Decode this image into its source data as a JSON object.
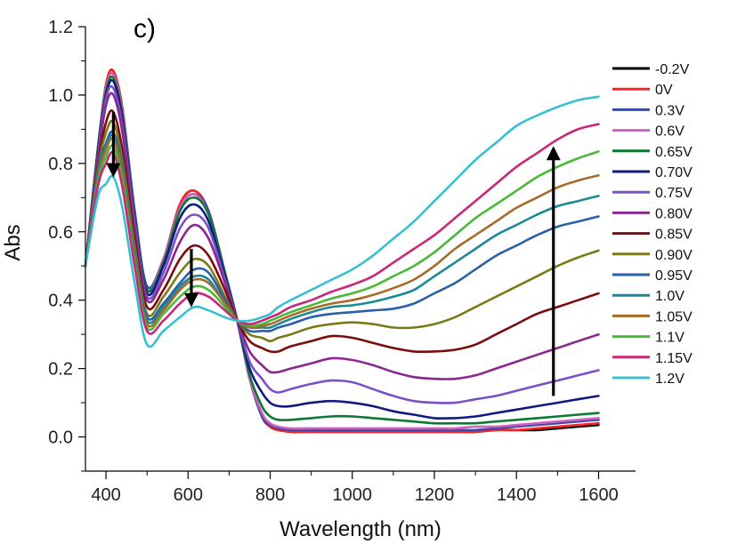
{
  "chart_data": {
    "type": "line",
    "panel_label": "c)",
    "xlabel": "Wavelength (nm)",
    "ylabel": "Abs",
    "xlim": [
      350,
      1690
    ],
    "ylim": [
      -0.1,
      1.2
    ],
    "x_ticks": [
      400,
      600,
      800,
      1000,
      1200,
      1400,
      1600
    ],
    "x_tick_labels": [
      "400",
      "600",
      "800",
      "1000",
      "1200",
      "1400",
      "1600"
    ],
    "y_ticks": [
      0.0,
      0.2,
      0.4,
      0.6,
      0.8,
      1.0,
      1.2
    ],
    "y_tick_labels": [
      "0.0",
      "0.2",
      "0.4",
      "0.6",
      "0.8",
      "1.0",
      "1.2"
    ],
    "legend_position": "right",
    "isosbestic_point": [
      720,
      0.34
    ],
    "x": [
      350,
      380,
      400,
      418,
      440,
      470,
      500,
      540,
      580,
      615,
      650,
      690,
      720,
      750,
      780,
      800,
      820,
      850,
      900,
      950,
      1000,
      1050,
      1100,
      1150,
      1200,
      1250,
      1300,
      1350,
      1400,
      1450,
      1500,
      1550,
      1600
    ],
    "series": [
      {
        "name": "-0.2V",
        "color": "#000000",
        "values": [
          0.5,
          0.84,
          1.03,
          1.07,
          0.96,
          0.66,
          0.44,
          0.52,
          0.68,
          0.72,
          0.66,
          0.48,
          0.34,
          0.17,
          0.06,
          0.03,
          0.02,
          0.015,
          0.015,
          0.015,
          0.015,
          0.015,
          0.015,
          0.015,
          0.015,
          0.015,
          0.015,
          0.02,
          0.02,
          0.02,
          0.025,
          0.03,
          0.035
        ]
      },
      {
        "name": "0V",
        "color": "#ff2020",
        "values": [
          0.5,
          0.84,
          1.03,
          1.07,
          0.96,
          0.66,
          0.44,
          0.52,
          0.68,
          0.72,
          0.66,
          0.48,
          0.34,
          0.17,
          0.06,
          0.03,
          0.02,
          0.015,
          0.015,
          0.015,
          0.015,
          0.015,
          0.015,
          0.015,
          0.015,
          0.015,
          0.015,
          0.02,
          0.02,
          0.025,
          0.03,
          0.035,
          0.04
        ]
      },
      {
        "name": "0.3V",
        "color": "#3a4aa8",
        "values": [
          0.5,
          0.84,
          1.02,
          1.06,
          0.95,
          0.66,
          0.44,
          0.52,
          0.67,
          0.71,
          0.66,
          0.48,
          0.34,
          0.17,
          0.06,
          0.035,
          0.025,
          0.02,
          0.02,
          0.02,
          0.02,
          0.02,
          0.02,
          0.02,
          0.02,
          0.02,
          0.02,
          0.025,
          0.03,
          0.035,
          0.04,
          0.045,
          0.05
        ]
      },
      {
        "name": "0.6V",
        "color": "#d060c0",
        "values": [
          0.5,
          0.84,
          1.02,
          1.06,
          0.95,
          0.65,
          0.43,
          0.52,
          0.67,
          0.71,
          0.65,
          0.48,
          0.34,
          0.17,
          0.07,
          0.04,
          0.03,
          0.025,
          0.025,
          0.025,
          0.025,
          0.025,
          0.025,
          0.025,
          0.025,
          0.025,
          0.03,
          0.03,
          0.035,
          0.04,
          0.045,
          0.05,
          0.055
        ]
      },
      {
        "name": "0.65V",
        "color": "#0a7a30",
        "values": [
          0.5,
          0.84,
          1.01,
          1.05,
          0.94,
          0.65,
          0.43,
          0.51,
          0.66,
          0.7,
          0.65,
          0.48,
          0.34,
          0.18,
          0.09,
          0.06,
          0.05,
          0.05,
          0.055,
          0.06,
          0.06,
          0.055,
          0.05,
          0.045,
          0.04,
          0.04,
          0.04,
          0.045,
          0.05,
          0.055,
          0.06,
          0.065,
          0.07
        ]
      },
      {
        "name": "0.70V",
        "color": "#101a80",
        "values": [
          0.5,
          0.83,
          1.0,
          1.04,
          0.93,
          0.64,
          0.42,
          0.5,
          0.64,
          0.68,
          0.63,
          0.47,
          0.34,
          0.2,
          0.13,
          0.1,
          0.09,
          0.09,
          0.1,
          0.105,
          0.1,
          0.09,
          0.075,
          0.065,
          0.055,
          0.055,
          0.06,
          0.07,
          0.08,
          0.09,
          0.1,
          0.11,
          0.12
        ]
      },
      {
        "name": "0.75V",
        "color": "#7a50c8",
        "values": [
          0.5,
          0.82,
          0.99,
          1.02,
          0.91,
          0.63,
          0.41,
          0.48,
          0.61,
          0.65,
          0.61,
          0.46,
          0.34,
          0.22,
          0.17,
          0.14,
          0.13,
          0.14,
          0.155,
          0.165,
          0.16,
          0.14,
          0.12,
          0.105,
          0.1,
          0.1,
          0.11,
          0.12,
          0.135,
          0.15,
          0.165,
          0.18,
          0.195
        ]
      },
      {
        "name": "0.80V",
        "color": "#8a2890",
        "values": [
          0.5,
          0.81,
          0.97,
          1.0,
          0.89,
          0.61,
          0.4,
          0.46,
          0.57,
          0.62,
          0.58,
          0.45,
          0.34,
          0.25,
          0.21,
          0.19,
          0.19,
          0.2,
          0.215,
          0.23,
          0.225,
          0.21,
          0.19,
          0.175,
          0.17,
          0.17,
          0.18,
          0.2,
          0.22,
          0.24,
          0.26,
          0.28,
          0.3
        ]
      },
      {
        "name": "0.85V",
        "color": "#7a0c0c",
        "values": [
          0.5,
          0.79,
          0.92,
          0.95,
          0.84,
          0.58,
          0.38,
          0.43,
          0.52,
          0.56,
          0.53,
          0.43,
          0.34,
          0.28,
          0.26,
          0.25,
          0.25,
          0.265,
          0.28,
          0.295,
          0.29,
          0.275,
          0.26,
          0.25,
          0.25,
          0.255,
          0.27,
          0.3,
          0.33,
          0.36,
          0.38,
          0.4,
          0.42
        ]
      },
      {
        "name": "0.90V",
        "color": "#7a7a18",
        "values": [
          0.5,
          0.78,
          0.89,
          0.92,
          0.81,
          0.56,
          0.36,
          0.41,
          0.48,
          0.52,
          0.5,
          0.41,
          0.34,
          0.3,
          0.29,
          0.28,
          0.29,
          0.3,
          0.32,
          0.33,
          0.335,
          0.33,
          0.32,
          0.32,
          0.33,
          0.35,
          0.38,
          0.41,
          0.44,
          0.47,
          0.5,
          0.525,
          0.545
        ]
      },
      {
        "name": "0.95V",
        "color": "#2a60aa",
        "values": [
          0.5,
          0.77,
          0.86,
          0.89,
          0.79,
          0.54,
          0.35,
          0.39,
          0.45,
          0.49,
          0.48,
          0.4,
          0.34,
          0.31,
          0.31,
          0.31,
          0.32,
          0.33,
          0.35,
          0.36,
          0.365,
          0.37,
          0.375,
          0.39,
          0.42,
          0.45,
          0.49,
          0.53,
          0.56,
          0.59,
          0.615,
          0.63,
          0.645
        ]
      },
      {
        "name": "1.0V",
        "color": "#1a8a98",
        "values": [
          0.5,
          0.76,
          0.85,
          0.88,
          0.78,
          0.53,
          0.34,
          0.38,
          0.44,
          0.47,
          0.46,
          0.39,
          0.34,
          0.32,
          0.32,
          0.32,
          0.33,
          0.345,
          0.365,
          0.38,
          0.385,
          0.395,
          0.41,
          0.43,
          0.47,
          0.51,
          0.55,
          0.59,
          0.62,
          0.65,
          0.675,
          0.69,
          0.705
        ]
      },
      {
        "name": "1.05V",
        "color": "#a86a2a",
        "values": [
          0.5,
          0.75,
          0.84,
          0.87,
          0.77,
          0.52,
          0.33,
          0.37,
          0.43,
          0.46,
          0.45,
          0.39,
          0.34,
          0.32,
          0.325,
          0.33,
          0.34,
          0.355,
          0.375,
          0.39,
          0.4,
          0.415,
          0.435,
          0.46,
          0.5,
          0.55,
          0.59,
          0.63,
          0.67,
          0.7,
          0.73,
          0.75,
          0.765
        ]
      },
      {
        "name": "1.1V",
        "color": "#4ab838",
        "values": [
          0.5,
          0.74,
          0.82,
          0.85,
          0.75,
          0.51,
          0.32,
          0.36,
          0.41,
          0.44,
          0.43,
          0.38,
          0.34,
          0.325,
          0.33,
          0.34,
          0.35,
          0.365,
          0.385,
          0.405,
          0.42,
          0.44,
          0.47,
          0.5,
          0.54,
          0.59,
          0.64,
          0.68,
          0.72,
          0.76,
          0.79,
          0.815,
          0.835
        ]
      },
      {
        "name": "1.15V",
        "color": "#c8287a",
        "values": [
          0.5,
          0.73,
          0.8,
          0.83,
          0.73,
          0.5,
          0.31,
          0.34,
          0.39,
          0.42,
          0.41,
          0.37,
          0.34,
          0.33,
          0.34,
          0.35,
          0.36,
          0.38,
          0.4,
          0.425,
          0.445,
          0.47,
          0.51,
          0.55,
          0.59,
          0.64,
          0.69,
          0.74,
          0.79,
          0.83,
          0.87,
          0.9,
          0.915
        ]
      },
      {
        "name": "1.2V",
        "color": "#38c0d0",
        "values": [
          0.5,
          0.7,
          0.74,
          0.76,
          0.67,
          0.45,
          0.27,
          0.31,
          0.35,
          0.38,
          0.37,
          0.35,
          0.34,
          0.34,
          0.35,
          0.36,
          0.38,
          0.4,
          0.43,
          0.46,
          0.49,
          0.53,
          0.58,
          0.63,
          0.69,
          0.75,
          0.81,
          0.86,
          0.91,
          0.94,
          0.965,
          0.985,
          0.995
        ]
      }
    ],
    "annotations": [
      {
        "type": "arrow",
        "direction": "down",
        "x": 418,
        "y_from": 0.95,
        "y_to": 0.78
      },
      {
        "type": "arrow",
        "direction": "down",
        "x": 608,
        "y_from": 0.55,
        "y_to": 0.4
      },
      {
        "type": "arrow",
        "direction": "up",
        "x": 1490,
        "y_from": 0.12,
        "y_to": 0.83
      }
    ]
  }
}
